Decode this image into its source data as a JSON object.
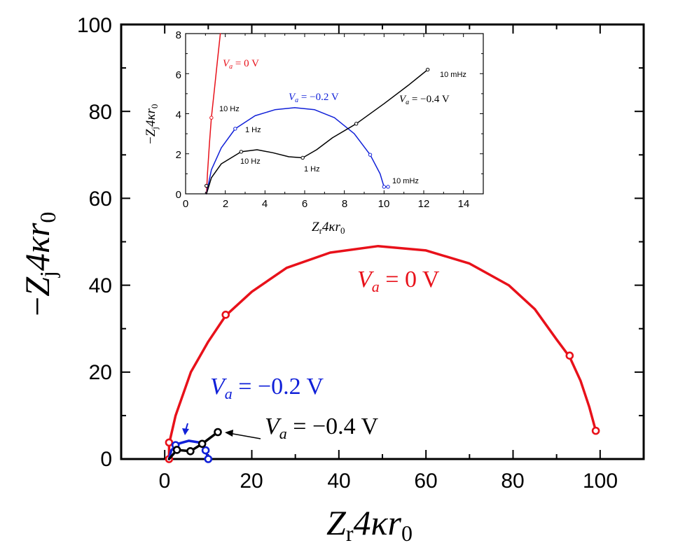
{
  "chart_data": [
    {
      "type": "line",
      "role": "main",
      "xlabel": {
        "base": "Z",
        "sub": "r",
        "tail": "4κr",
        "sub2": "0"
      },
      "ylabel": {
        "prefix": "−",
        "base": "Z",
        "sub": "j",
        "tail": "4κr",
        "sub2": "0"
      },
      "xlim": [
        -10,
        110
      ],
      "ylim": [
        0,
        100
      ],
      "xticks": [
        "0",
        "20",
        "40",
        "60",
        "80",
        "100"
      ],
      "yticks": [
        "0",
        "20",
        "40",
        "60",
        "80",
        "100"
      ],
      "series": [
        {
          "name": "V_a = 0 V",
          "color": "#e8111a",
          "points": [
            [
              1,
              0
            ],
            [
              1,
              3.5
            ],
            [
              2.5,
              10
            ],
            [
              6,
              20
            ],
            [
              10,
              27
            ],
            [
              14,
              33
            ],
            [
              20,
              38.5
            ],
            [
              28,
              44
            ],
            [
              38,
              47.5
            ],
            [
              49,
              49
            ],
            [
              60,
              48
            ],
            [
              70,
              45
            ],
            [
              79,
              40
            ],
            [
              85,
              34.5
            ],
            [
              90,
              27.5
            ],
            [
              93,
              23.5
            ],
            [
              95.5,
              18
            ],
            [
              97.5,
              12
            ],
            [
              99,
              6.5
            ]
          ],
          "markers": [
            [
              1,
              0
            ],
            [
              1,
              3.8
            ],
            [
              14,
              33.2
            ],
            [
              93,
              23.8
            ],
            [
              99,
              6.5
            ]
          ],
          "label": {
            "prefix": "V",
            "sub": "a",
            "text": " = 0 V"
          }
        },
        {
          "name": "V_a = -0.2 V",
          "color": "#1020d8",
          "points": [
            [
              1,
              0
            ],
            [
              1.5,
              2
            ],
            [
              3,
              3.5
            ],
            [
              5.5,
              4.2
            ],
            [
              8,
              3.8
            ],
            [
              9.4,
              2
            ],
            [
              10,
              0
            ]
          ],
          "markers": [
            [
              2.5,
              3.2
            ],
            [
              9.4,
              2
            ],
            [
              10,
              0
            ]
          ],
          "label": {
            "prefix": "V",
            "sub": "a",
            "text": " = −0.2 V"
          }
        },
        {
          "name": "V_a = -0.4 V",
          "color": "#000000",
          "points": [
            [
              1,
              0
            ],
            [
              2.8,
              2.1
            ],
            [
              5.9,
              1.8
            ],
            [
              8.6,
              3.5
            ],
            [
              12.2,
              6.2
            ]
          ],
          "markers": [
            [
              2.8,
              2.1
            ],
            [
              5.9,
              1.8
            ],
            [
              8.6,
              3.5
            ],
            [
              12.2,
              6.2
            ]
          ],
          "label": {
            "prefix": "V",
            "sub": "a",
            "text": " = −0.4 V"
          }
        }
      ]
    },
    {
      "type": "line",
      "role": "inset",
      "xlabel": {
        "base": "Z",
        "sub": "r",
        "tail": "4κr",
        "sub2": "0"
      },
      "ylabel": {
        "prefix": "−",
        "base": "Z",
        "sub": "j",
        "tail": "4κr",
        "sub2": "0"
      },
      "xlim": [
        0,
        15
      ],
      "ylim": [
        0,
        8
      ],
      "xticks": [
        "0",
        "2",
        "4",
        "6",
        "8",
        "10",
        "12",
        "14"
      ],
      "yticks": [
        "0",
        "2",
        "4",
        "6",
        "8"
      ],
      "series": [
        {
          "name": "V_a = 0 V",
          "color": "#e8111a",
          "points": [
            [
              1.05,
              0
            ],
            [
              1.1,
              1
            ],
            [
              1.2,
              2.5
            ],
            [
              1.3,
              3.8
            ],
            [
              1.45,
              5.2
            ],
            [
              1.6,
              6.6
            ],
            [
              1.75,
              8
            ]
          ],
          "markers": [
            [
              1.05,
              0.4
            ],
            [
              1.3,
              3.8
            ]
          ],
          "label": {
            "prefix": "V",
            "sub": "a",
            "text": " = 0 V"
          }
        },
        {
          "name": "V_a = -0.2 V",
          "color": "#1020d8",
          "points": [
            [
              1.05,
              0
            ],
            [
              1.3,
              1.2
            ],
            [
              1.8,
              2.3
            ],
            [
              2.5,
              3.25
            ],
            [
              3.5,
              3.9
            ],
            [
              4.5,
              4.2
            ],
            [
              5.5,
              4.3
            ],
            [
              6.5,
              4.2
            ],
            [
              7.5,
              3.8
            ],
            [
              8.5,
              3.0
            ],
            [
              9.3,
              1.95
            ],
            [
              9.8,
              1.0
            ],
            [
              10.0,
              0.35
            ],
            [
              10.2,
              0.35
            ]
          ],
          "markers": [
            [
              2.5,
              3.25
            ],
            [
              9.3,
              1.95
            ],
            [
              10.0,
              0.35
            ],
            [
              10.2,
              0.35
            ]
          ],
          "label": {
            "prefix": "V",
            "sub": "a",
            "text": " = −0.2 V"
          }
        },
        {
          "name": "V_a = -0.4 V",
          "color": "#000000",
          "points": [
            [
              1.05,
              0
            ],
            [
              1.3,
              0.8
            ],
            [
              1.8,
              1.5
            ],
            [
              2.8,
              2.1
            ],
            [
              3.6,
              2.2
            ],
            [
              4.4,
              2.05
            ],
            [
              5.2,
              1.85
            ],
            [
              5.9,
              1.8
            ],
            [
              6.6,
              2.2
            ],
            [
              7.4,
              2.8
            ],
            [
              8.6,
              3.5
            ],
            [
              10,
              4.5
            ],
            [
              11.2,
              5.4
            ],
            [
              12.2,
              6.2
            ]
          ],
          "markers": [
            [
              1.05,
              0.4
            ],
            [
              2.8,
              2.1
            ],
            [
              5.9,
              1.8
            ],
            [
              8.6,
              3.5
            ],
            [
              12.2,
              6.2
            ]
          ],
          "label": {
            "prefix": "V",
            "sub": "a",
            "text": " = −0.4 V"
          }
        }
      ],
      "annotations": [
        {
          "text": "10 Hz",
          "color": "#000000"
        },
        {
          "text": "1 Hz",
          "color": "#000000"
        },
        {
          "text": "10 Hz",
          "color": "#000000"
        },
        {
          "text": "1 Hz",
          "color": "#000000"
        },
        {
          "text": "10 mHz",
          "color": "#000000"
        },
        {
          "text": "10 mHz",
          "color": "#000000"
        }
      ]
    }
  ]
}
